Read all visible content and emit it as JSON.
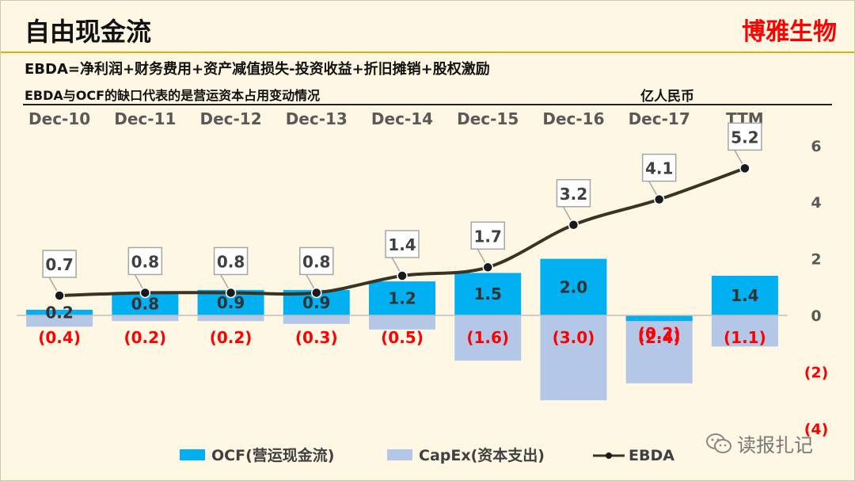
{
  "slide": {
    "title": "自由现金流",
    "brand": "博雅生物",
    "formula": "EBDA=净利润+财务费用+资产减值损失-投资收益+折旧摊销+股权激励",
    "note": "EBDA与OCF的缺口代表的是营运资本占用变动情况",
    "unit": "亿人民币",
    "watermark": "读报扎记"
  },
  "colors": {
    "ocf": "#00b0f0",
    "capex": "#b4c7e7",
    "ebda_line": "#3a3222",
    "negative_label": "#ff0000",
    "brand": "#ff0000",
    "axis_text": "#595959"
  },
  "chart_data": {
    "type": "bar",
    "categories": [
      "Dec-10",
      "Dec-11",
      "Dec-12",
      "Dec-13",
      "Dec-14",
      "Dec-15",
      "Dec-16",
      "Dec-17",
      "TTM"
    ],
    "series": [
      {
        "name": "OCF(营运现金流)",
        "type": "bar",
        "values": [
          0.2,
          0.8,
          0.9,
          0.9,
          1.2,
          1.5,
          2.0,
          -0.2,
          1.4
        ],
        "labels": [
          "0.2",
          "0.8",
          "0.9",
          "0.9",
          "1.2",
          "1.5",
          "2.0",
          "(0.2)",
          "1.4"
        ]
      },
      {
        "name": "CapEx(资本支出)",
        "type": "bar",
        "values": [
          -0.4,
          -0.2,
          -0.2,
          -0.3,
          -0.5,
          -1.6,
          -3.0,
          -2.4,
          -1.1
        ],
        "labels": [
          "(0.4)",
          "(0.2)",
          "(0.2)",
          "(0.3)",
          "(0.5)",
          "(1.6)",
          "(3.0)",
          "(2.4)",
          "(1.1)"
        ]
      },
      {
        "name": "EBDA",
        "type": "line",
        "values": [
          0.7,
          0.8,
          0.8,
          0.8,
          1.4,
          1.7,
          3.2,
          4.1,
          5.2
        ],
        "labels": [
          "0.7",
          "0.8",
          "0.8",
          "0.8",
          "1.4",
          "1.7",
          "3.2",
          "4.1",
          "5.2"
        ]
      }
    ],
    "y_axis": {
      "position": "right",
      "ticks": [
        6,
        4,
        2,
        0,
        -2,
        -4
      ],
      "tick_labels": [
        "6",
        "4",
        "2",
        "0",
        "(2)",
        "(4)"
      ]
    },
    "ylim": [
      -4,
      6
    ],
    "legend": "bottom",
    "grid": false
  }
}
